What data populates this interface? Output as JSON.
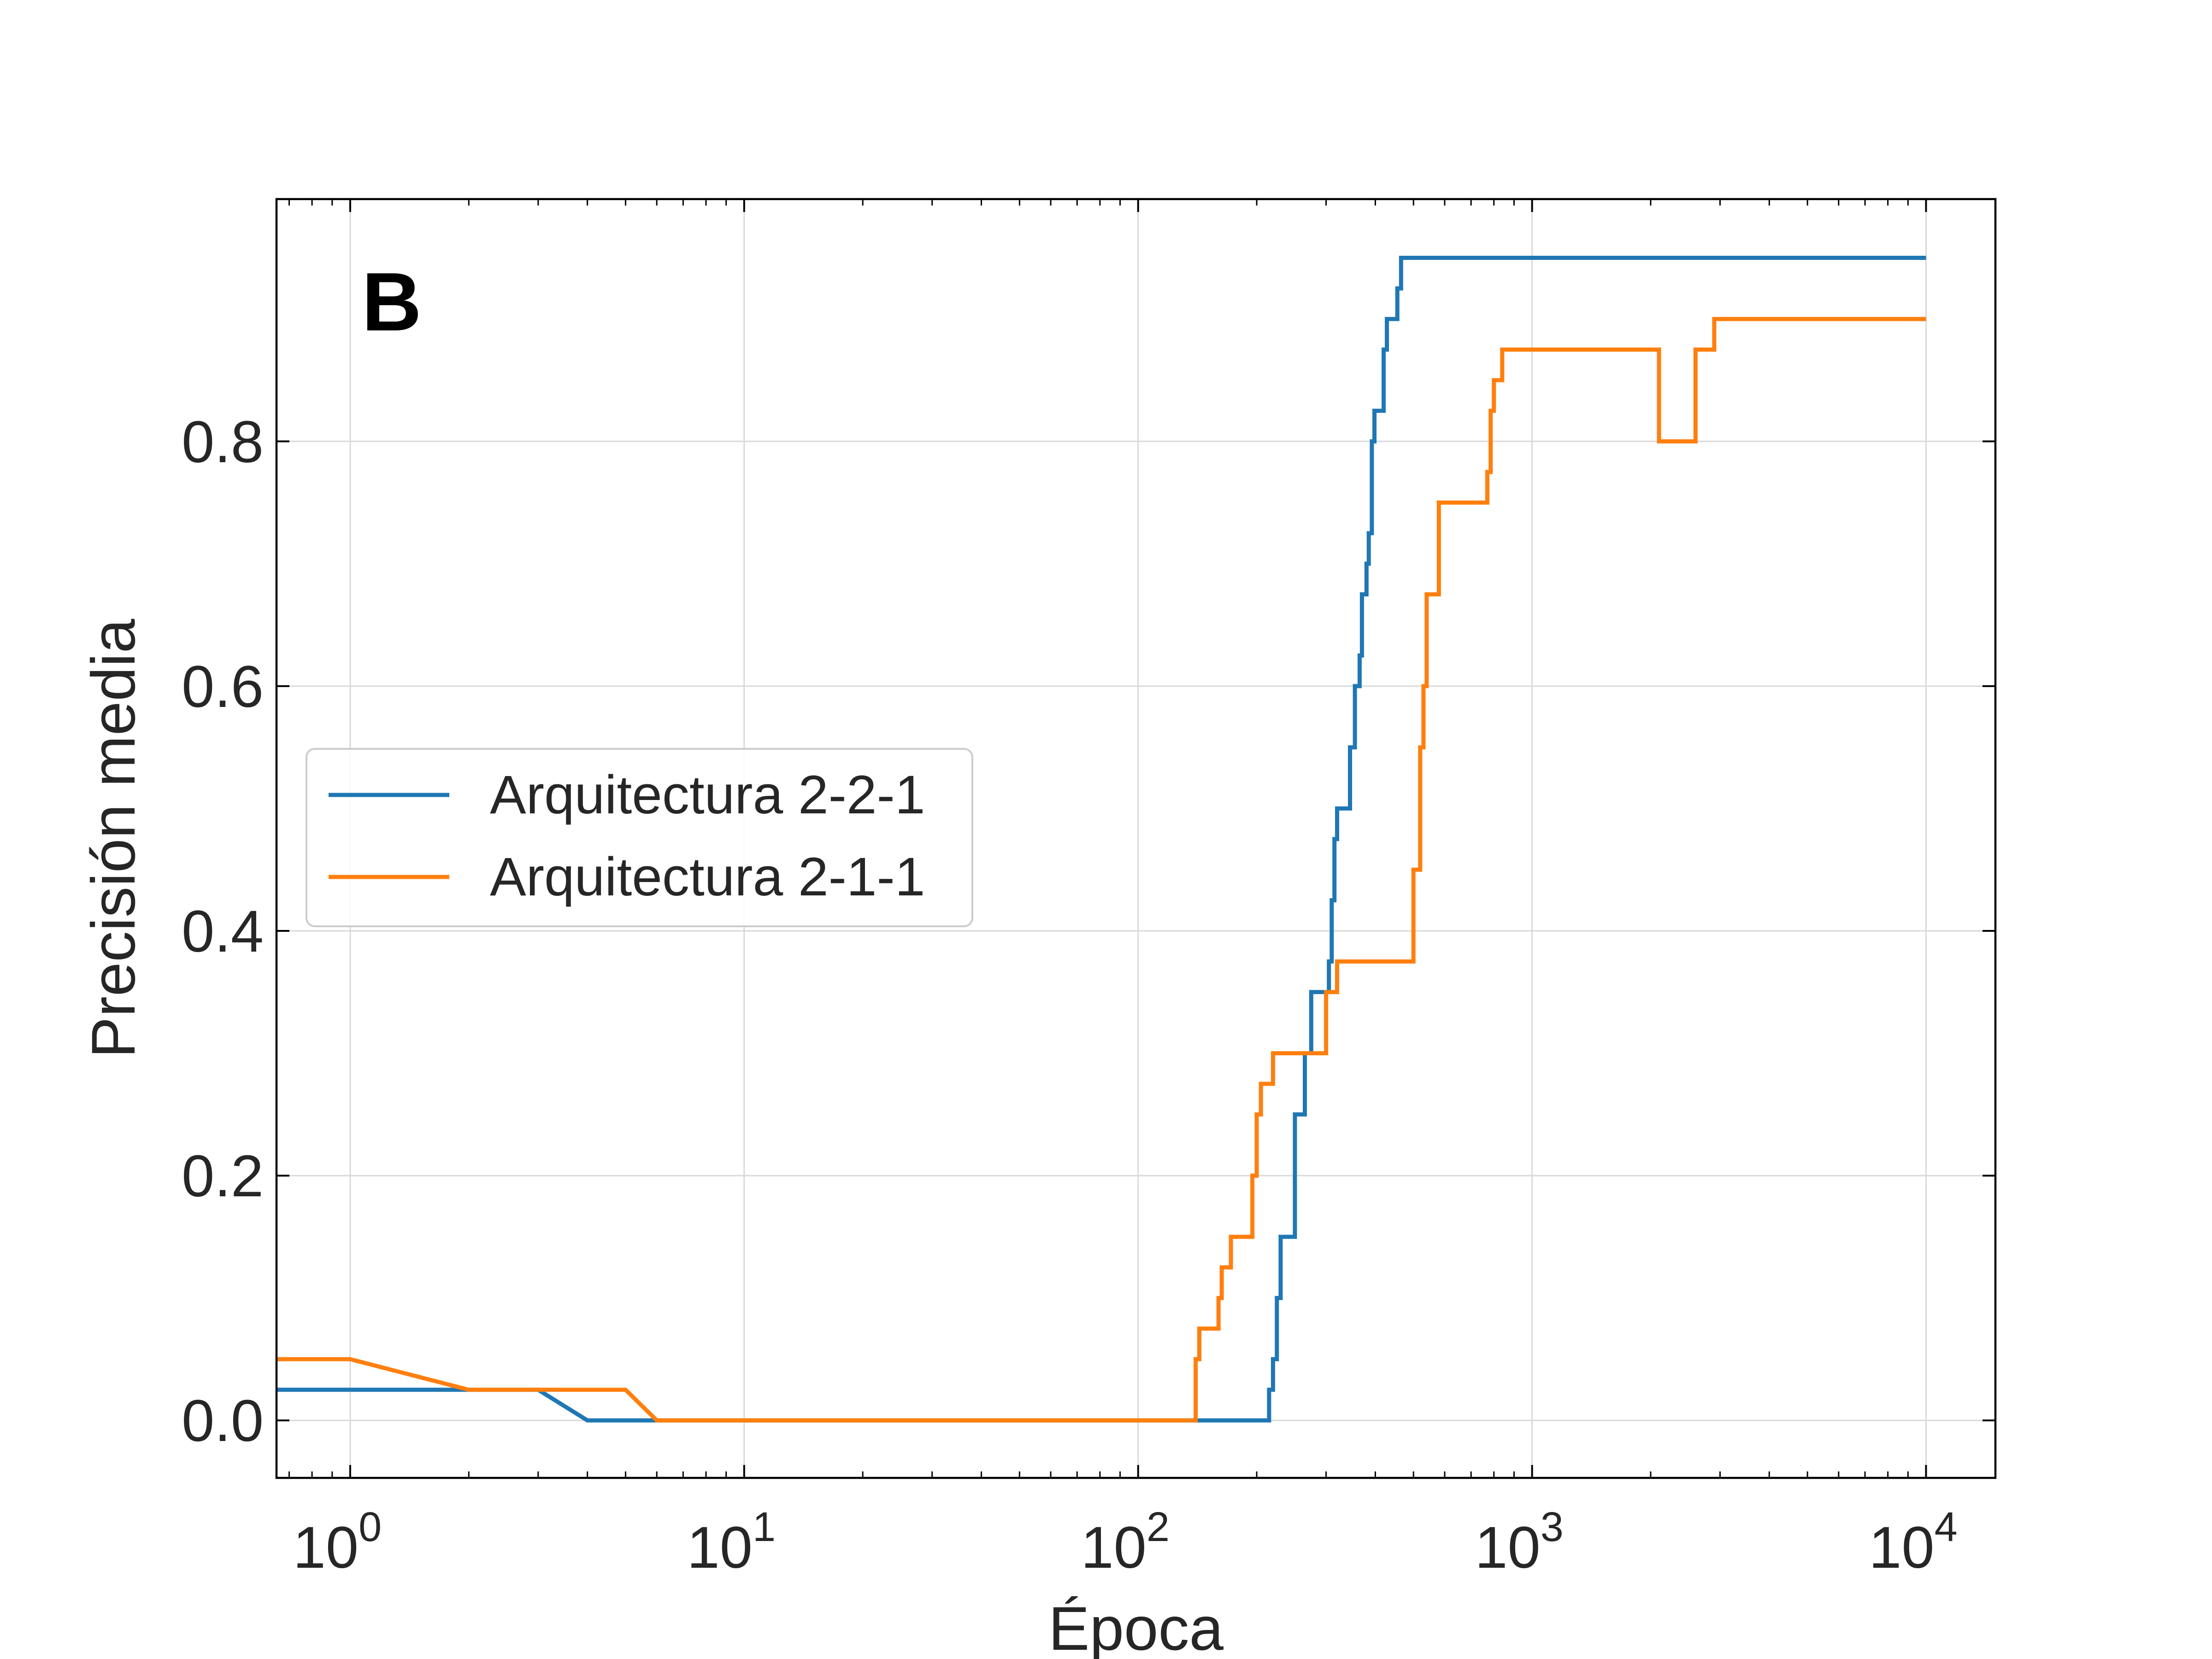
{
  "chart_data": {
    "type": "line",
    "panel_label": "B",
    "xlabel": "Época",
    "ylabel": "Precisión media",
    "xscale": "log",
    "xlim": [
      0.65,
      15000
    ],
    "ylim": [
      -0.047,
      0.998
    ],
    "x_ticks": [
      {
        "value": 1,
        "base": "10",
        "exp": "0"
      },
      {
        "value": 10,
        "base": "10",
        "exp": "1"
      },
      {
        "value": 100,
        "base": "10",
        "exp": "2"
      },
      {
        "value": 1000,
        "base": "10",
        "exp": "3"
      },
      {
        "value": 10000,
        "base": "10",
        "exp": "4"
      }
    ],
    "y_ticks": [
      {
        "value": 0.0,
        "label": "0.0"
      },
      {
        "value": 0.2,
        "label": "0.2"
      },
      {
        "value": 0.4,
        "label": "0.4"
      },
      {
        "value": 0.6,
        "label": "0.6"
      },
      {
        "value": 0.8,
        "label": "0.8"
      }
    ],
    "grid": true,
    "legend_position": "center-left",
    "series": [
      {
        "name": "Arquitectura 2-2-1",
        "color": "#1f77b4",
        "points": [
          [
            0.5,
            0.025
          ],
          [
            3,
            0.025
          ],
          [
            4,
            0.0
          ],
          [
            215,
            0.0
          ],
          [
            215,
            0.025
          ],
          [
            220,
            0.025
          ],
          [
            220,
            0.05
          ],
          [
            225,
            0.05
          ],
          [
            225,
            0.1
          ],
          [
            230,
            0.1
          ],
          [
            230,
            0.15
          ],
          [
            250,
            0.15
          ],
          [
            250,
            0.25
          ],
          [
            265,
            0.25
          ],
          [
            265,
            0.3
          ],
          [
            275,
            0.3
          ],
          [
            275,
            0.35
          ],
          [
            305,
            0.35
          ],
          [
            305,
            0.375
          ],
          [
            310,
            0.375
          ],
          [
            310,
            0.425
          ],
          [
            315,
            0.425
          ],
          [
            315,
            0.475
          ],
          [
            320,
            0.475
          ],
          [
            320,
            0.5
          ],
          [
            345,
            0.5
          ],
          [
            345,
            0.55
          ],
          [
            355,
            0.55
          ],
          [
            355,
            0.6
          ],
          [
            365,
            0.6
          ],
          [
            365,
            0.625
          ],
          [
            370,
            0.625
          ],
          [
            370,
            0.675
          ],
          [
            380,
            0.675
          ],
          [
            380,
            0.7
          ],
          [
            385,
            0.7
          ],
          [
            385,
            0.725
          ],
          [
            392,
            0.725
          ],
          [
            392,
            0.8
          ],
          [
            398,
            0.8
          ],
          [
            398,
            0.825
          ],
          [
            420,
            0.825
          ],
          [
            420,
            0.875
          ],
          [
            428,
            0.875
          ],
          [
            428,
            0.9
          ],
          [
            455,
            0.9
          ],
          [
            455,
            0.925
          ],
          [
            465,
            0.925
          ],
          [
            465,
            0.95
          ],
          [
            10000,
            0.95
          ]
        ]
      },
      {
        "name": "Arquitectura 2-1-1",
        "color": "#ff7f0e",
        "points": [
          [
            0.5,
            0.05
          ],
          [
            1,
            0.05
          ],
          [
            2,
            0.025
          ],
          [
            5,
            0.025
          ],
          [
            6,
            0.0
          ],
          [
            140,
            0.0
          ],
          [
            140,
            0.05
          ],
          [
            143,
            0.05
          ],
          [
            143,
            0.075
          ],
          [
            160,
            0.075
          ],
          [
            160,
            0.1
          ],
          [
            163,
            0.1
          ],
          [
            163,
            0.125
          ],
          [
            172,
            0.125
          ],
          [
            172,
            0.15
          ],
          [
            195,
            0.15
          ],
          [
            195,
            0.2
          ],
          [
            200,
            0.2
          ],
          [
            200,
            0.25
          ],
          [
            205,
            0.25
          ],
          [
            205,
            0.275
          ],
          [
            220,
            0.275
          ],
          [
            220,
            0.3
          ],
          [
            300,
            0.3
          ],
          [
            300,
            0.35
          ],
          [
            320,
            0.35
          ],
          [
            320,
            0.375
          ],
          [
            500,
            0.375
          ],
          [
            500,
            0.45
          ],
          [
            520,
            0.45
          ],
          [
            520,
            0.55
          ],
          [
            530,
            0.55
          ],
          [
            530,
            0.6
          ],
          [
            540,
            0.6
          ],
          [
            540,
            0.675
          ],
          [
            580,
            0.675
          ],
          [
            580,
            0.75
          ],
          [
            770,
            0.75
          ],
          [
            770,
            0.775
          ],
          [
            785,
            0.775
          ],
          [
            785,
            0.825
          ],
          [
            800,
            0.825
          ],
          [
            800,
            0.85
          ],
          [
            840,
            0.85
          ],
          [
            840,
            0.875
          ],
          [
            2100,
            0.875
          ],
          [
            2100,
            0.8
          ],
          [
            2600,
            0.8
          ],
          [
            2600,
            0.875
          ],
          [
            2900,
            0.875
          ],
          [
            2900,
            0.9
          ],
          [
            10000,
            0.9
          ]
        ]
      }
    ]
  }
}
